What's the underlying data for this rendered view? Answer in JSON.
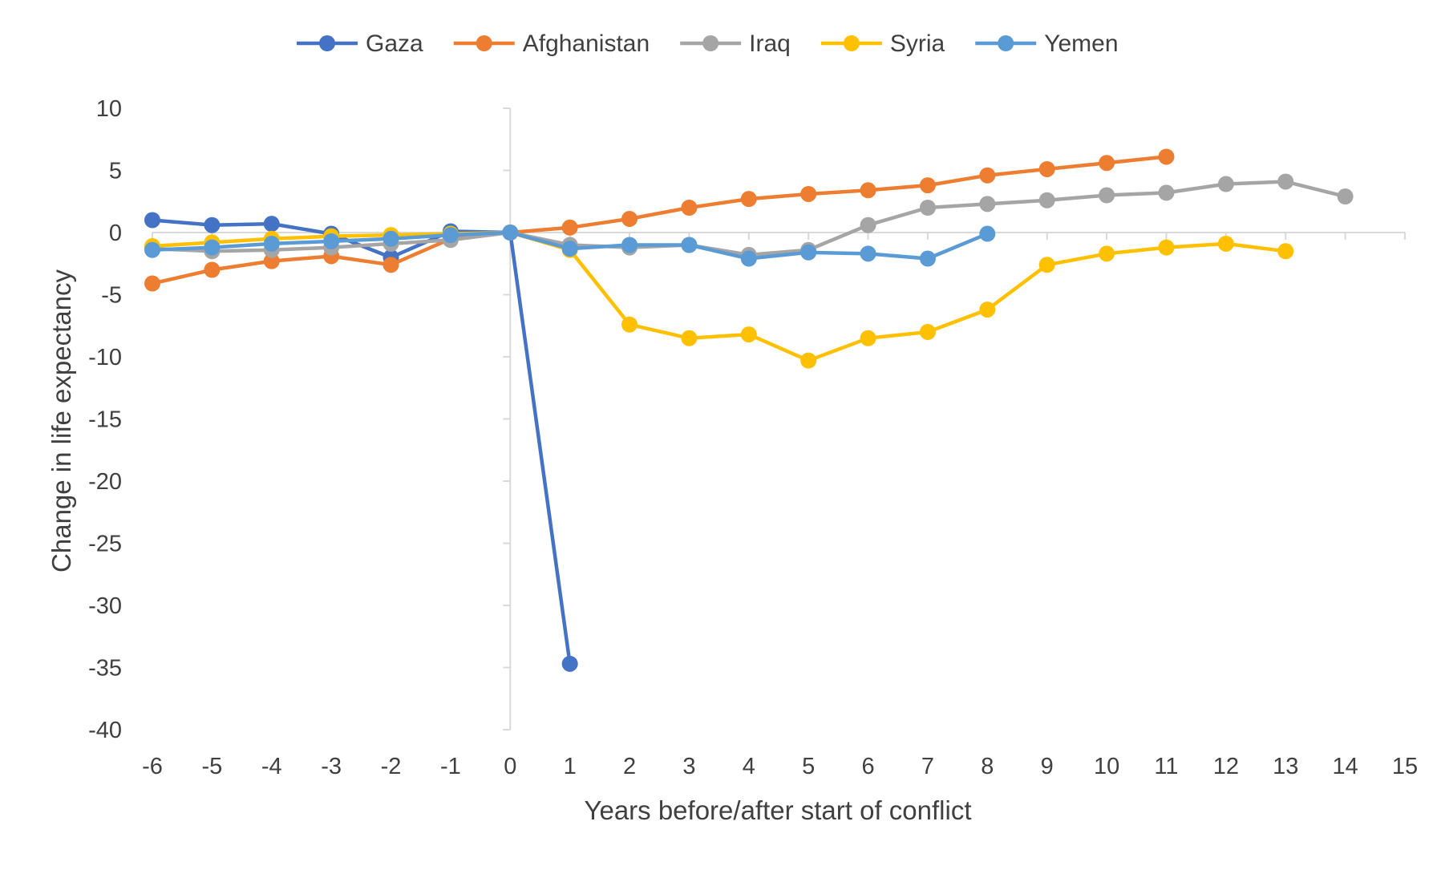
{
  "chart_data": {
    "type": "line",
    "title": "",
    "xlabel": "Years before/after start of conflict",
    "ylabel": "Change in life expectancy",
    "xlim": [
      -6,
      15
    ],
    "ylim": [
      -40,
      10
    ],
    "x_ticks": [
      "-6",
      "-5",
      "-4",
      "-3",
      "-2",
      "-1",
      "0",
      "1",
      "2",
      "3",
      "4",
      "5",
      "6",
      "7",
      "8",
      "9",
      "10",
      "11",
      "12",
      "13",
      "14",
      "15"
    ],
    "y_ticks": [
      "10",
      "5",
      "0",
      "-5",
      "-10",
      "-15",
      "-20",
      "-25",
      "-30",
      "-35",
      "-40"
    ],
    "grid": false,
    "legend_position": "top",
    "series": [
      {
        "name": "Gaza",
        "color": "#4472C4",
        "x": [
          -6,
          -5,
          -4,
          -3,
          -2,
          -1,
          0,
          1
        ],
        "y": [
          1.0,
          0.6,
          0.7,
          -0.1,
          -2.0,
          0.1,
          0,
          -34.7
        ]
      },
      {
        "name": "Afghanistan",
        "color": "#ED7D31",
        "x": [
          -6,
          -5,
          -4,
          -3,
          -2,
          -1,
          0,
          1,
          2,
          3,
          4,
          5,
          6,
          7,
          8,
          9,
          10,
          11
        ],
        "y": [
          -4.1,
          -3.0,
          -2.3,
          -1.9,
          -2.6,
          -0.5,
          0,
          0.4,
          1.1,
          2.0,
          2.7,
          3.1,
          3.4,
          3.8,
          4.6,
          5.1,
          5.6,
          6.1
        ]
      },
      {
        "name": "Iraq",
        "color": "#A5A5A5",
        "x": [
          -6,
          -5,
          -4,
          -3,
          -2,
          -1,
          0,
          1,
          2,
          3,
          4,
          5,
          6,
          7,
          8,
          9,
          10,
          11,
          12,
          13,
          14
        ],
        "y": [
          -1.3,
          -1.5,
          -1.4,
          -1.2,
          -0.9,
          -0.6,
          0,
          -1.0,
          -1.2,
          -1.0,
          -1.8,
          -1.4,
          0.6,
          2.0,
          2.3,
          2.6,
          3.0,
          3.2,
          3.9,
          4.1,
          2.9
        ]
      },
      {
        "name": "Syria",
        "color": "#FFC000",
        "x": [
          -6,
          -5,
          -4,
          -3,
          -2,
          -1,
          0,
          1,
          2,
          3,
          4,
          5,
          6,
          7,
          8,
          9,
          10,
          11,
          12,
          13
        ],
        "y": [
          -1.1,
          -0.8,
          -0.5,
          -0.3,
          -0.2,
          -0.1,
          0,
          -1.4,
          -7.4,
          -8.5,
          -8.2,
          -10.3,
          -8.5,
          -8.0,
          -6.2,
          -2.6,
          -1.7,
          -1.2,
          -0.9,
          -1.5
        ]
      },
      {
        "name": "Yemen",
        "color": "#5B9BD5",
        "x": [
          -6,
          -5,
          -4,
          -3,
          -2,
          -1,
          0,
          1,
          2,
          3,
          4,
          5,
          6,
          7,
          8
        ],
        "y": [
          -1.4,
          -1.2,
          -0.9,
          -0.7,
          -0.5,
          -0.2,
          0,
          -1.3,
          -1.0,
          -1.0,
          -2.1,
          -1.6,
          -1.7,
          -2.1,
          -0.1
        ]
      }
    ]
  }
}
